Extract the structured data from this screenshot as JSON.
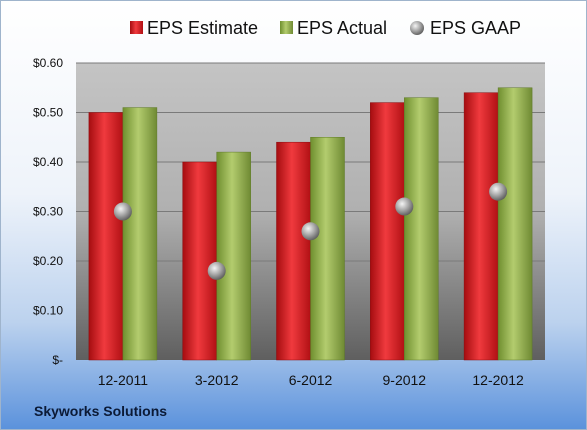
{
  "company": "Skyworks Solutions",
  "chart_data": {
    "type": "bar",
    "categories": [
      "12-2011",
      "3-2012",
      "6-2012",
      "9-2012",
      "12-2012"
    ],
    "series": [
      {
        "name": "EPS Estimate",
        "kind": "bar",
        "color": "#d0151c",
        "values": [
          0.5,
          0.4,
          0.44,
          0.52,
          0.54
        ]
      },
      {
        "name": "EPS Actual",
        "kind": "bar",
        "color": "#8eae42",
        "values": [
          0.51,
          0.42,
          0.45,
          0.53,
          0.55
        ]
      },
      {
        "name": "EPS GAAP",
        "kind": "marker",
        "color": "#9a9a9a",
        "values": [
          0.3,
          0.18,
          0.26,
          0.31,
          0.34
        ]
      }
    ],
    "ylim": [
      0,
      0.6
    ],
    "yticks": [
      0,
      0.1,
      0.2,
      0.3,
      0.4,
      0.5,
      0.6
    ],
    "ytick_labels": [
      "$-",
      "$0.10",
      "$0.20",
      "$0.30",
      "$0.40",
      "$0.50",
      "$0.60"
    ],
    "grid": true,
    "legend": "top"
  }
}
